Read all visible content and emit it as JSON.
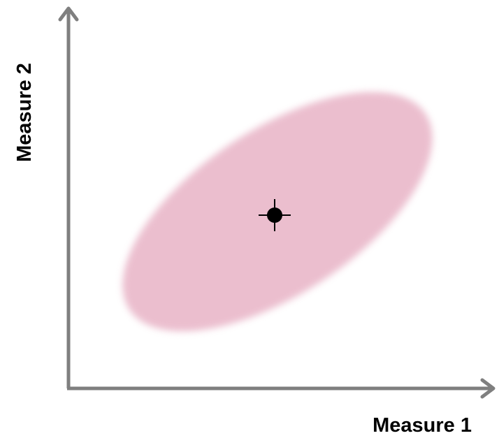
{
  "axes": {
    "x_label": "Measure 1",
    "y_label": "Measure 2"
  },
  "colors": {
    "axis": "#7f7f7f",
    "ellipse_fill": "#e8b3c6",
    "marker": "#000000"
  },
  "elements": {
    "ellipse": "correlation-ellipse",
    "marker": "crosshair-point"
  }
}
